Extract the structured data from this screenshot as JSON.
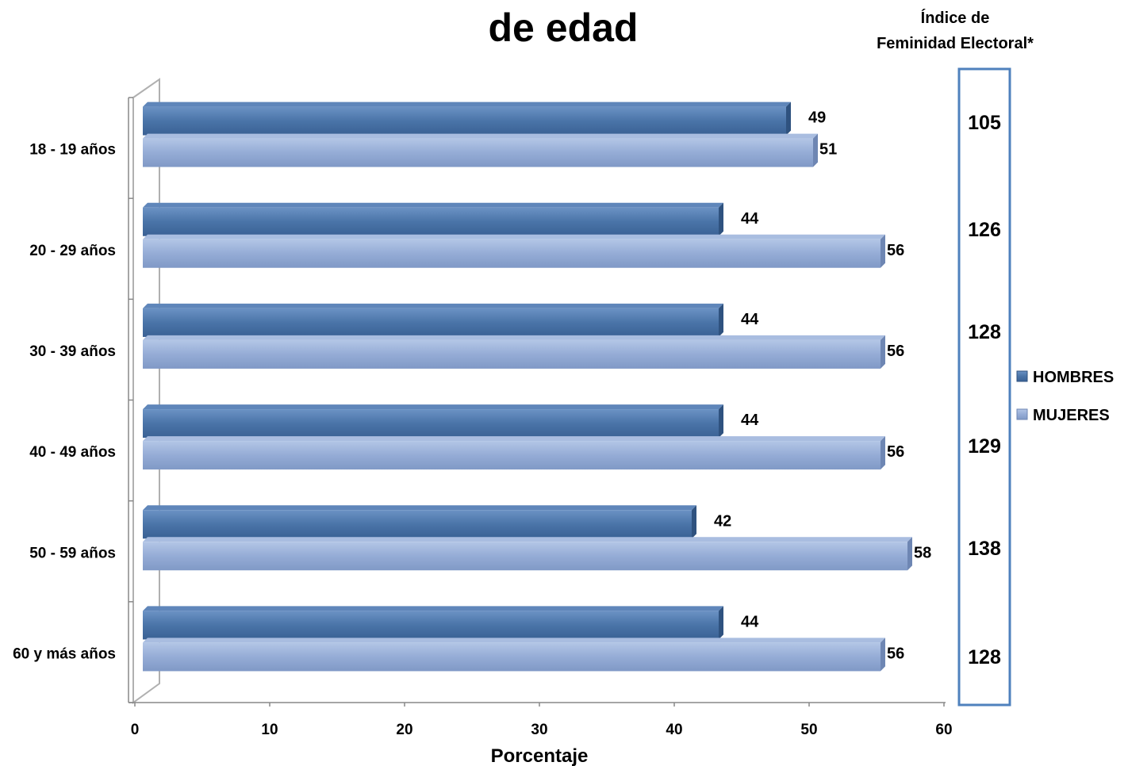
{
  "chart_data": {
    "type": "bar",
    "orientation": "horizontal",
    "title": "de edad",
    "xlabel": "Porcentaje",
    "ylabel": "",
    "xlim": [
      0,
      60
    ],
    "x_ticks": [
      "0",
      "10",
      "20",
      "30",
      "40",
      "50",
      "60"
    ],
    "categories": [
      "18 - 19 años",
      "20 - 29 años",
      "30 - 39 años",
      "40 - 49 años",
      "50 - 59 años",
      "60 y más años"
    ],
    "series": [
      {
        "name": "HOMBRES",
        "values": [
          49,
          44,
          44,
          44,
          42,
          44
        ],
        "color": "#4a74a8"
      },
      {
        "name": "MUJERES",
        "values": [
          51,
          56,
          56,
          56,
          58,
          56
        ],
        "color": "#95acd6"
      }
    ],
    "legend_position": "right",
    "grid": false
  },
  "feminidad": {
    "title_line1": "Índice de",
    "title_line2": "Feminidad Electoral*",
    "values": [
      "105",
      "126",
      "128",
      "129",
      "138",
      "128"
    ],
    "border_color": "#4f81bd"
  }
}
